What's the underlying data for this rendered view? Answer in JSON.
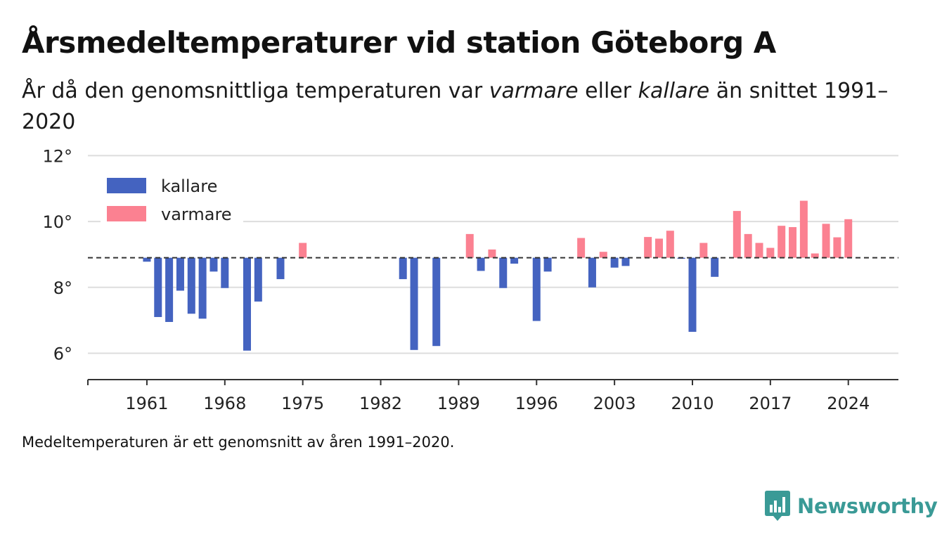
{
  "title": "Årsmedeltemperaturer vid station Göteborg A",
  "subtitle": {
    "part1": "År då den genomsnittliga temperaturen var ",
    "warm_word": "varmare",
    "part2": " eller ",
    "cold_word": "kallare",
    "part3": " än snittet 1991–2020"
  },
  "footnote": "Medeltemperaturen är ett genomsnitt av åren 1991–2020.",
  "brand": {
    "name": "Newsworthy",
    "icon": "newsworthy-chart-bubble-icon",
    "color": "#3a9a96"
  },
  "colors": {
    "colder": "#4463c0",
    "warmer": "#fb8191",
    "grid": "#dddddd",
    "baseline": "#333333"
  },
  "chart_data": {
    "type": "bar",
    "baseline": 8.9,
    "ylim": [
      5.2,
      12.2
    ],
    "yticks": [
      6,
      8,
      10,
      12
    ],
    "ytick_labels": [
      "6°",
      "8°",
      "10°",
      "12°"
    ],
    "xlim": [
      1955.7,
      2028.5
    ],
    "xticks": [
      1961,
      1968,
      1975,
      1982,
      1989,
      1996,
      2003,
      2010,
      2017,
      2024
    ],
    "grid": true,
    "legend": {
      "position": "top-left",
      "entries": [
        {
          "name": "kallare",
          "color": "#4463c0"
        },
        {
          "name": "varmare",
          "color": "#fb8191"
        }
      ]
    },
    "x": [
      1961,
      1962,
      1963,
      1964,
      1965,
      1966,
      1967,
      1968,
      1970,
      1971,
      1973,
      1975,
      1984,
      1985,
      1987,
      1990,
      1991,
      1992,
      1993,
      1994,
      1996,
      1997,
      2000,
      2001,
      2002,
      2003,
      2004,
      2006,
      2007,
      2008,
      2009,
      2010,
      2011,
      2012,
      2014,
      2015,
      2016,
      2017,
      2018,
      2019,
      2020,
      2021,
      2022,
      2023,
      2024
    ],
    "values": [
      8.78,
      7.1,
      6.95,
      7.9,
      7.2,
      7.05,
      8.48,
      7.98,
      6.08,
      7.57,
      8.25,
      9.35,
      8.25,
      6.1,
      6.22,
      9.62,
      8.5,
      9.15,
      7.98,
      8.72,
      6.98,
      8.48,
      9.5,
      8.0,
      9.08,
      8.6,
      8.65,
      9.53,
      9.48,
      9.72,
      8.87,
      6.65,
      9.35,
      8.32,
      10.32,
      9.62,
      9.35,
      9.2,
      9.87,
      9.83,
      10.63,
      9.03,
      9.93,
      9.52,
      10.07
    ]
  }
}
